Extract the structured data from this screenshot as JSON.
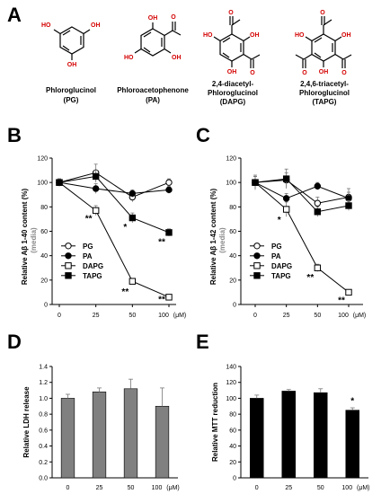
{
  "panels": {
    "a": {
      "letter": "A",
      "compounds": [
        {
          "key": "pg",
          "name_line1": "Phloroglucinol",
          "name_line2": "(PG)",
          "name_line3": ""
        },
        {
          "key": "pa",
          "name_line1": "Phloroacetophenone",
          "name_line2": "(PA)",
          "name_line3": ""
        },
        {
          "key": "dapg",
          "name_line1": "2,4-diacetyl-",
          "name_line2": "Phloroglucinol",
          "name_line3": "(DAPG)"
        },
        {
          "key": "tapg",
          "name_line1": "2,4,6-triacetyl-",
          "name_line2": "Phloroglucinol",
          "name_line3": "(TAPG)"
        }
      ],
      "atom_labels": {
        "oh": "OH",
        "ho": "HO",
        "o": "O"
      }
    },
    "b": {
      "letter": "B"
    },
    "c": {
      "letter": "C"
    },
    "d": {
      "letter": "D"
    },
    "e": {
      "letter": "E"
    }
  },
  "chart_data": [
    {
      "id": "b",
      "type": "line",
      "ylabel_prefix": "Relative A",
      "ylabel_beta": "β",
      "ylabel_suffix": " 1-40 content (%)",
      "ylabel_sub": "(media)",
      "x_ticks": [
        "0",
        "25",
        "50",
        "100 (μM)"
      ],
      "ylim": [
        0,
        120
      ],
      "y_ticks": [
        0,
        20,
        40,
        60,
        80,
        100,
        120
      ],
      "legend_placement": "bottom-left",
      "series": [
        {
          "name": "PG",
          "marker": "open-circle",
          "values": [
            100,
            108,
            88,
            100
          ],
          "errors": [
            3,
            7,
            4,
            3
          ]
        },
        {
          "name": "PA",
          "marker": "filled-circle",
          "values": [
            100,
            95,
            91,
            94
          ],
          "errors": [
            3,
            4,
            3,
            3
          ]
        },
        {
          "name": "DAPG",
          "marker": "open-square",
          "values": [
            100,
            77,
            19,
            6
          ],
          "errors": [
            3,
            4,
            2,
            1
          ]
        },
        {
          "name": "TAPG",
          "marker": "filled-square",
          "values": [
            100,
            105,
            71,
            59
          ],
          "errors": [
            3,
            5,
            4,
            3
          ]
        }
      ],
      "annotations": [
        {
          "text": "**",
          "x": 1,
          "y": 68
        },
        {
          "text": "*",
          "x": 2,
          "y": 61
        },
        {
          "text": "**",
          "x": 3,
          "y": 49
        },
        {
          "text": "**",
          "x": 2,
          "y": 8
        },
        {
          "text": "**",
          "x": 3,
          "y": 2
        }
      ]
    },
    {
      "id": "c",
      "type": "line",
      "ylabel_prefix": "Relative A",
      "ylabel_beta": "β",
      "ylabel_suffix": " 1-42 content (%)",
      "ylabel_sub": "(media)",
      "x_ticks": [
        "0",
        "25",
        "50",
        "100 (μM)"
      ],
      "ylim": [
        0,
        120
      ],
      "y_ticks": [
        0,
        20,
        40,
        60,
        80,
        100,
        120
      ],
      "legend_placement": "bottom-left",
      "series": [
        {
          "name": "PG",
          "marker": "open-circle",
          "values": [
            100,
            102,
            83,
            88
          ],
          "errors": [
            6,
            6,
            5,
            7
          ]
        },
        {
          "name": "PA",
          "marker": "filled-circle",
          "values": [
            100,
            87,
            97,
            87
          ],
          "errors": [
            5,
            4,
            3,
            5
          ]
        },
        {
          "name": "DAPG",
          "marker": "open-square",
          "values": [
            100,
            78,
            30,
            10
          ],
          "errors": [
            5,
            6,
            3,
            1
          ]
        },
        {
          "name": "TAPG",
          "marker": "filled-square",
          "values": [
            100,
            103,
            76,
            81
          ],
          "errors": [
            5,
            8,
            4,
            4
          ]
        }
      ],
      "annotations": [
        {
          "text": "*",
          "x": 1,
          "y": 67
        },
        {
          "text": "**",
          "x": 2,
          "y": 20
        },
        {
          "text": "**",
          "x": 3,
          "y": 1
        }
      ]
    },
    {
      "id": "d",
      "type": "bar",
      "ylabel": "Relative LDH release",
      "categories": [
        "0",
        "25",
        "50",
        "100 (μM)"
      ],
      "values": [
        1.0,
        1.08,
        1.12,
        0.9
      ],
      "errors": [
        0.05,
        0.05,
        0.12,
        0.23
      ],
      "ylim": [
        0,
        1.4
      ],
      "y_ticks": [
        "0.0",
        "0.2",
        "0.4",
        "0.6",
        "0.8",
        "1.0",
        "1.2",
        "1.4"
      ],
      "bar_color": "#808080"
    },
    {
      "id": "e",
      "type": "bar",
      "ylabel": "Relative MTT reduction",
      "categories": [
        "0",
        "25",
        "50",
        "100 (μM)"
      ],
      "values": [
        100,
        109,
        107,
        85
      ],
      "errors": [
        4,
        2,
        5,
        3
      ],
      "ylim": [
        0,
        140
      ],
      "y_ticks": [
        0,
        20,
        40,
        60,
        80,
        100,
        120,
        140
      ],
      "bar_color": "#000000",
      "annotations": [
        {
          "text": "*",
          "x": 3,
          "y": 93
        }
      ]
    }
  ]
}
